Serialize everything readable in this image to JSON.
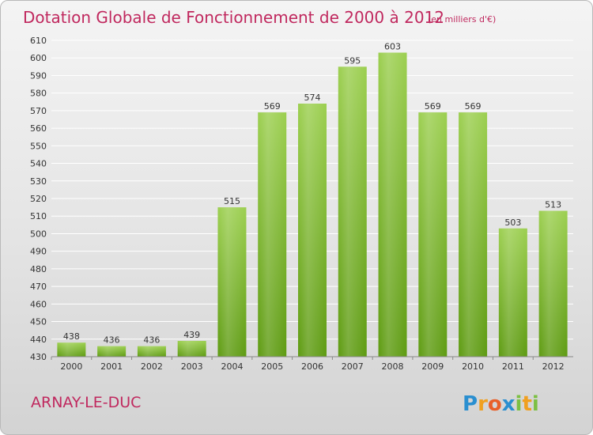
{
  "colors": {
    "title": "#c0285e",
    "bar_top": "#9ccf50",
    "bar_bottom": "#5e9b12",
    "grid": "#ffffff",
    "background": "#e8e8e8"
  },
  "chart_data": {
    "type": "bar",
    "title": "Dotation Globale de Fonctionnement de 2000 à 2012",
    "subtitle": "(en milliers d'€)",
    "xlabel": "",
    "ylabel": "",
    "categories": [
      "2000",
      "2001",
      "2002",
      "2003",
      "2004",
      "2005",
      "2006",
      "2007",
      "2008",
      "2009",
      "2010",
      "2011",
      "2012"
    ],
    "values": [
      438,
      436,
      436,
      439,
      515,
      569,
      574,
      595,
      603,
      569,
      569,
      503,
      513
    ],
    "ylim": [
      430,
      610
    ],
    "yticks": [
      430,
      440,
      450,
      460,
      470,
      480,
      490,
      500,
      510,
      520,
      530,
      540,
      550,
      560,
      570,
      580,
      590,
      600,
      610
    ],
    "grid": true,
    "data_labels": true
  },
  "footer": {
    "commune": "ARNAY-LE-DUC",
    "logo": {
      "letters": [
        {
          "ch": "P",
          "color": "#2a8fd0"
        },
        {
          "ch": "r",
          "color": "#f0a020"
        },
        {
          "ch": "o",
          "color": "#e8602a"
        },
        {
          "ch": "x",
          "color": "#2a8fd0"
        },
        {
          "ch": "i",
          "color": "#7cc043"
        },
        {
          "ch": "t",
          "color": "#f0a020"
        },
        {
          "ch": "i",
          "color": "#7cc043"
        }
      ]
    }
  }
}
